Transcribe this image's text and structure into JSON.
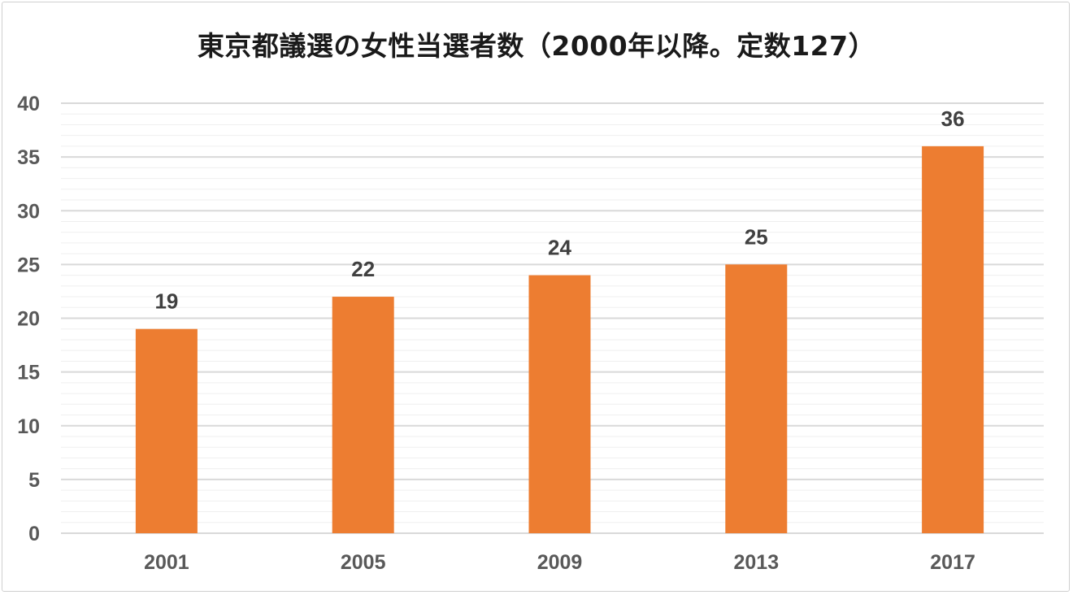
{
  "chart_data": {
    "type": "bar",
    "title": "東京都議選の女性当選者数（2000年以降。定数127）",
    "categories": [
      "2001",
      "2005",
      "2009",
      "2013",
      "2017"
    ],
    "values": [
      19,
      22,
      24,
      25,
      36
    ],
    "data_labels": [
      "19",
      "22",
      "24",
      "25",
      "36"
    ],
    "yticks": [
      "0",
      "5",
      "10",
      "15",
      "20",
      "25",
      "30",
      "35",
      "40"
    ],
    "ylim": [
      0,
      40
    ],
    "ytick_step": 5,
    "minor_grid_step": 1,
    "grid": true,
    "legend": "none",
    "bar_color": "#ED7D31",
    "grid_color": "#D9D9D9",
    "minor_grid_color": "#EFEFEF"
  }
}
